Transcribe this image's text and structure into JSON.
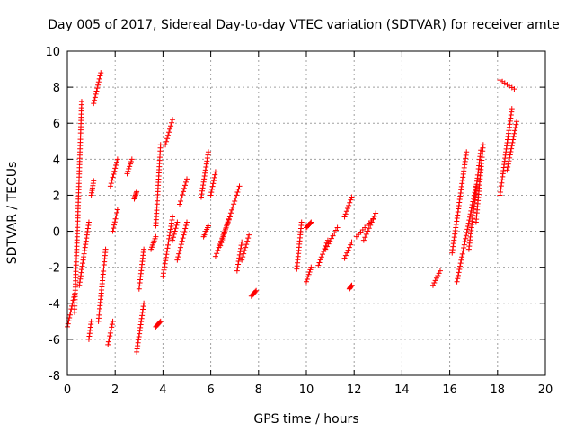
{
  "chart_data": {
    "type": "scatter",
    "title": "Day 005 of 2017, Sidereal Day-to-day VTEC variation (SDTVAR) for receiver amte",
    "xlabel": "GPS time / hours",
    "ylabel": "SDTVAR / TECUs",
    "xlim": [
      0,
      20
    ],
    "ylim": [
      -8,
      10
    ],
    "xticks": [
      "0",
      "2",
      "4",
      "6",
      "8",
      "10",
      "12",
      "14",
      "16",
      "18",
      "20"
    ],
    "yticks": [
      "-8",
      "-6",
      "-4",
      "-2",
      "0",
      "2",
      "4",
      "6",
      "8",
      "10"
    ],
    "grid": true,
    "marker": "+",
    "marker_color": "#ff0000",
    "series": [
      {
        "name": "SDTVAR",
        "segments": [
          {
            "x": [
              0.0,
              0.3
            ],
            "y": [
              -5.3,
              -3.5
            ]
          },
          {
            "x": [
              0.3,
              0.6
            ],
            "y": [
              -4.5,
              7.2
            ]
          },
          {
            "x": [
              0.5,
              0.9
            ],
            "y": [
              -3.0,
              0.5
            ]
          },
          {
            "x": [
              0.9,
              1.0
            ],
            "y": [
              -6.0,
              -5.0
            ]
          },
          {
            "x": [
              1.0,
              1.1
            ],
            "y": [
              2.0,
              2.8
            ]
          },
          {
            "x": [
              1.1,
              1.4
            ],
            "y": [
              7.1,
              8.8
            ]
          },
          {
            "x": [
              1.3,
              1.6
            ],
            "y": [
              -5.0,
              -1.0
            ]
          },
          {
            "x": [
              1.7,
              1.9
            ],
            "y": [
              -6.3,
              -5.0
            ]
          },
          {
            "x": [
              1.8,
              2.1
            ],
            "y": [
              2.5,
              4.0
            ]
          },
          {
            "x": [
              1.9,
              2.1
            ],
            "y": [
              0.0,
              1.2
            ]
          },
          {
            "x": [
              2.5,
              2.7
            ],
            "y": [
              3.2,
              4.0
            ]
          },
          {
            "x": [
              2.8,
              2.9
            ],
            "y": [
              1.8,
              2.2
            ]
          },
          {
            "x": [
              2.9,
              3.2
            ],
            "y": [
              -6.7,
              -4.0
            ]
          },
          {
            "x": [
              3.0,
              3.2
            ],
            "y": [
              -3.2,
              -1.0
            ]
          },
          {
            "x": [
              3.5,
              3.7
            ],
            "y": [
              -1.0,
              -0.3
            ]
          },
          {
            "x": [
              3.7,
              3.9
            ],
            "y": [
              0.3,
              4.8
            ]
          },
          {
            "x": [
              3.7,
              3.9
            ],
            "y": [
              -5.3,
              -5.0
            ]
          },
          {
            "x": [
              4.0,
              4.4
            ],
            "y": [
              -2.5,
              0.8
            ]
          },
          {
            "x": [
              4.1,
              4.4
            ],
            "y": [
              4.8,
              6.2
            ]
          },
          {
            "x": [
              4.4,
              4.6
            ],
            "y": [
              -0.5,
              0.5
            ]
          },
          {
            "x": [
              4.6,
              5.0
            ],
            "y": [
              -1.6,
              0.5
            ]
          },
          {
            "x": [
              4.7,
              5.0
            ],
            "y": [
              1.5,
              2.9
            ]
          },
          {
            "x": [
              5.6,
              5.9
            ],
            "y": [
              1.9,
              4.4
            ]
          },
          {
            "x": [
              5.7,
              5.9
            ],
            "y": [
              -0.3,
              0.3
            ]
          },
          {
            "x": [
              6.0,
              6.2
            ],
            "y": [
              2.0,
              3.3
            ]
          },
          {
            "x": [
              6.2,
              6.8
            ],
            "y": [
              -1.4,
              0.8
            ]
          },
          {
            "x": [
              6.4,
              7.2
            ],
            "y": [
              -0.8,
              2.5
            ]
          },
          {
            "x": [
              7.1,
              7.3
            ],
            "y": [
              -2.2,
              -0.6
            ]
          },
          {
            "x": [
              7.3,
              7.6
            ],
            "y": [
              -1.6,
              -0.2
            ]
          },
          {
            "x": [
              7.7,
              7.9
            ],
            "y": [
              -3.6,
              -3.3
            ]
          },
          {
            "x": [
              9.6,
              9.8
            ],
            "y": [
              -2.1,
              0.5
            ]
          },
          {
            "x": [
              10.0,
              10.2
            ],
            "y": [
              -2.8,
              -2.0
            ]
          },
          {
            "x": [
              10.0,
              10.2
            ],
            "y": [
              0.2,
              0.5
            ]
          },
          {
            "x": [
              10.5,
              10.9
            ],
            "y": [
              -1.9,
              -0.5
            ]
          },
          {
            "x": [
              10.8,
              11.3
            ],
            "y": [
              -1.0,
              0.2
            ]
          },
          {
            "x": [
              11.6,
              11.9
            ],
            "y": [
              -1.5,
              -0.6
            ]
          },
          {
            "x": [
              11.6,
              11.9
            ],
            "y": [
              0.8,
              1.9
            ]
          },
          {
            "x": [
              11.8,
              11.9
            ],
            "y": [
              -3.2,
              -3.0
            ]
          },
          {
            "x": [
              12.1,
              12.8
            ],
            "y": [
              -0.3,
              0.7
            ]
          },
          {
            "x": [
              12.4,
              12.9
            ],
            "y": [
              -0.5,
              1.0
            ]
          },
          {
            "x": [
              15.3,
              15.6
            ],
            "y": [
              -3.0,
              -2.2
            ]
          },
          {
            "x": [
              16.1,
              16.7
            ],
            "y": [
              -1.2,
              4.4
            ]
          },
          {
            "x": [
              16.3,
              17.1
            ],
            "y": [
              -2.8,
              2.5
            ]
          },
          {
            "x": [
              16.8,
              17.3
            ],
            "y": [
              -1.0,
              4.5
            ]
          },
          {
            "x": [
              17.1,
              17.4
            ],
            "y": [
              0.5,
              4.8
            ]
          },
          {
            "x": [
              18.1,
              18.6
            ],
            "y": [
              2.0,
              6.8
            ]
          },
          {
            "x": [
              18.1,
              18.7
            ],
            "y": [
              8.4,
              7.9
            ]
          },
          {
            "x": [
              18.4,
              18.8
            ],
            "y": [
              3.4,
              6.1
            ]
          }
        ]
      }
    ]
  }
}
